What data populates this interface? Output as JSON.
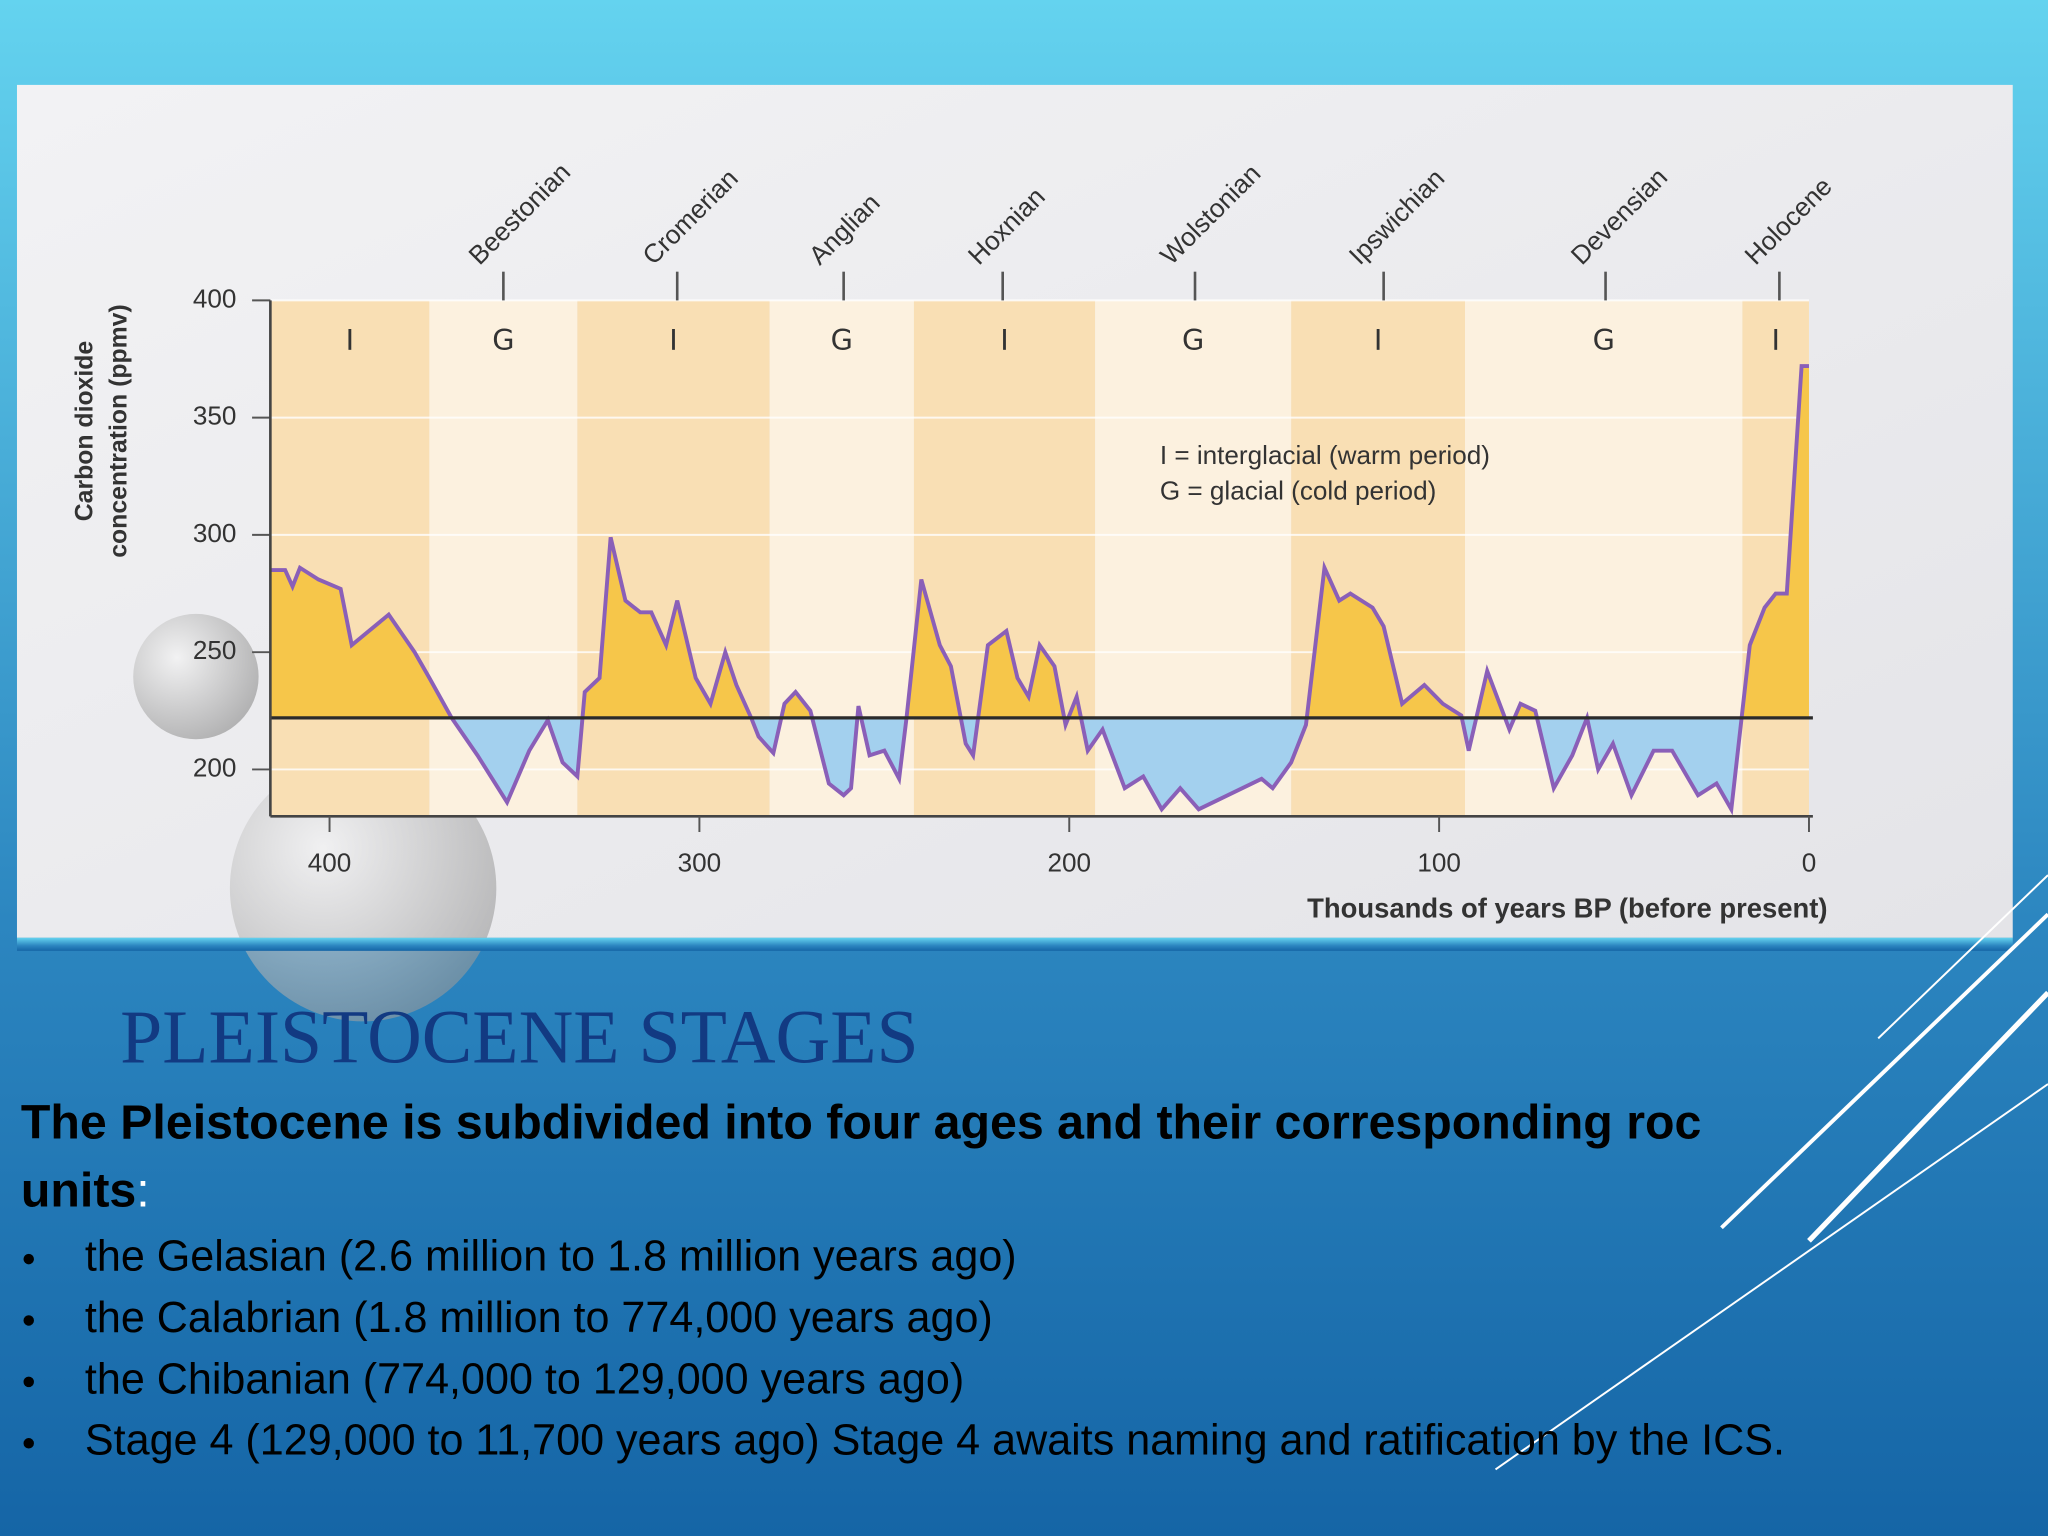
{
  "chart_data": {
    "type": "area",
    "y_label": [
      "Carbon dioxide",
      "concentration (ppmv)"
    ],
    "x_label": "Thousands of years BP (before present)",
    "xlim": [
      416,
      0
    ],
    "xticks": [
      400,
      300,
      200,
      100,
      0
    ],
    "ylim": [
      180,
      400
    ],
    "yticks": [
      200,
      250,
      300,
      350,
      400
    ],
    "threshold": 222,
    "above_color": "#f6c64a",
    "below_color": "#a3d0ee",
    "line_color": "#8a5fb8",
    "legend": [
      "I = interglacial  (warm period)",
      "G = glacial (cold period)"
    ],
    "bands": [
      {
        "label": "I",
        "from": 416,
        "to": 373
      },
      {
        "label": "G",
        "from": 373,
        "to": 333
      },
      {
        "label": "I",
        "from": 333,
        "to": 281
      },
      {
        "label": "G",
        "from": 281,
        "to": 242
      },
      {
        "label": "I",
        "from": 242,
        "to": 193
      },
      {
        "label": "G",
        "from": 193,
        "to": 140
      },
      {
        "label": "I",
        "from": 140,
        "to": 93
      },
      {
        "label": "G",
        "from": 93,
        "to": 18
      },
      {
        "label": "I",
        "from": 18,
        "to": 0
      }
    ],
    "stages": [
      {
        "name": "Beestonian",
        "x": 353
      },
      {
        "name": "Cromerian",
        "x": 306
      },
      {
        "name": "Anglian",
        "x": 261
      },
      {
        "name": "Hoxnian",
        "x": 218
      },
      {
        "name": "Wolstonian",
        "x": 166
      },
      {
        "name": "Ipswichian",
        "x": 115
      },
      {
        "name": "Devensian",
        "x": 55
      },
      {
        "name": "Holocene",
        "x": 8
      }
    ],
    "x": [
      416,
      412,
      410,
      408,
      403,
      397,
      394,
      384,
      377,
      373,
      367,
      360,
      352,
      346,
      341,
      337,
      333,
      331,
      327,
      324,
      320,
      316,
      313,
      309,
      306,
      301,
      297,
      293,
      290,
      286,
      284,
      280,
      277,
      274,
      270,
      265,
      261,
      259,
      257,
      254,
      250,
      246,
      244,
      240,
      235,
      232,
      228,
      226,
      222,
      217,
      214,
      211,
      208,
      204,
      201,
      198,
      195,
      191,
      185,
      180,
      175,
      170,
      165,
      148,
      145,
      140,
      136,
      131,
      127,
      124,
      118,
      115,
      110,
      104,
      99,
      94,
      92,
      87,
      81,
      78,
      74,
      69,
      64,
      60,
      57,
      53,
      48,
      42,
      37,
      30,
      25,
      21,
      16,
      12,
      9,
      6,
      2,
      0
    ],
    "values": [
      285,
      285,
      278,
      286,
      281,
      277,
      253,
      266,
      250,
      239,
      222,
      206,
      186,
      208,
      221,
      203,
      197,
      233,
      239,
      299,
      272,
      267,
      267,
      253,
      272,
      239,
      228,
      250,
      236,
      222,
      214,
      207,
      228,
      233,
      225,
      194,
      189,
      192,
      227,
      206,
      208,
      196,
      222,
      281,
      253,
      244,
      211,
      206,
      253,
      259,
      239,
      231,
      253,
      244,
      219,
      231,
      208,
      217,
      192,
      197,
      183,
      192,
      183,
      196,
      192,
      203,
      219,
      286,
      272,
      275,
      269,
      261,
      228,
      236,
      228,
      223,
      208,
      242,
      217,
      228,
      225,
      192,
      206,
      222,
      200,
      211,
      189,
      208,
      208,
      189,
      194,
      183,
      253,
      269,
      275,
      275,
      372,
      372
    ]
  },
  "slide": {
    "title": "PLEISTOCENE STAGES",
    "heading_lines": [
      "The Pleistocene is subdivided into four ages and their corresponding roc",
      "units"
    ],
    "heading_suffix": ":",
    "bullets": [
      "the Gelasian (2.6 million to 1.8 million years ago)",
      "the Calabrian (1.8 million to 774,000 years ago)",
      "the Chibanian (774,000 to 129,000 years ago)",
      "Stage 4 (129,000 to 11,700 years ago) Stage 4 awaits naming and ratification by the ICS."
    ]
  }
}
